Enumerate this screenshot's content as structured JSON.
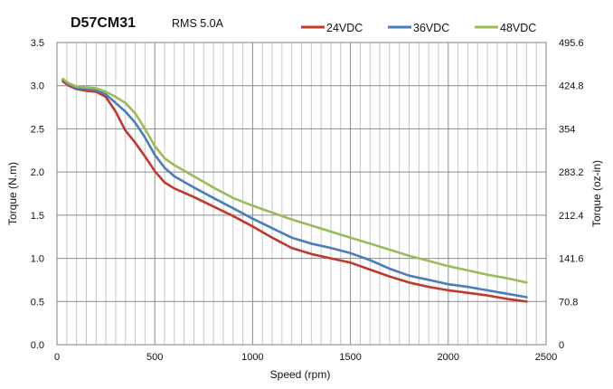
{
  "chart_data": {
    "type": "line",
    "title": "D57CM31",
    "subtitle": "RMS 5.0A",
    "xlabel": "Speed (rpm)",
    "ylabel": "Torque (N.m)",
    "y2label": "Torque (oz-in)",
    "xlim": [
      0,
      2500
    ],
    "ylim": [
      0,
      3.5
    ],
    "y2lim": [
      0,
      495.6
    ],
    "x_ticks": [
      "0",
      "500",
      "1000",
      "1500",
      "2000",
      "2500"
    ],
    "y_ticks": [
      "0.0",
      "0.5",
      "1.0",
      "1.5",
      "2.0",
      "2.5",
      "3.0",
      "3.5"
    ],
    "y2_ticks": [
      "0",
      "70.8",
      "141.6",
      "212.4",
      "283.2",
      "354",
      "424.8",
      "495.6"
    ],
    "x_grid_step": 50,
    "y_grid_step": 0.5,
    "grid": true,
    "legend_position": "top-right",
    "series": [
      {
        "name": "24VDC",
        "color": "#c0392b",
        "points": [
          [
            30,
            3.05
          ],
          [
            60,
            3.0
          ],
          [
            100,
            2.96
          ],
          [
            150,
            2.94
          ],
          [
            200,
            2.93
          ],
          [
            250,
            2.87
          ],
          [
            300,
            2.7
          ],
          [
            350,
            2.48
          ],
          [
            400,
            2.34
          ],
          [
            450,
            2.18
          ],
          [
            500,
            2.01
          ],
          [
            550,
            1.88
          ],
          [
            600,
            1.81
          ],
          [
            700,
            1.71
          ],
          [
            800,
            1.6
          ],
          [
            900,
            1.49
          ],
          [
            1000,
            1.37
          ],
          [
            1100,
            1.24
          ],
          [
            1200,
            1.12
          ],
          [
            1300,
            1.05
          ],
          [
            1400,
            1.0
          ],
          [
            1500,
            0.95
          ],
          [
            1600,
            0.87
          ],
          [
            1700,
            0.79
          ],
          [
            1800,
            0.72
          ],
          [
            1900,
            0.67
          ],
          [
            2000,
            0.63
          ],
          [
            2100,
            0.6
          ],
          [
            2200,
            0.57
          ],
          [
            2300,
            0.53
          ],
          [
            2400,
            0.5
          ]
        ]
      },
      {
        "name": "36VDC",
        "color": "#4a7ebb",
        "points": [
          [
            30,
            3.07
          ],
          [
            60,
            3.02
          ],
          [
            100,
            2.97
          ],
          [
            150,
            2.96
          ],
          [
            200,
            2.95
          ],
          [
            250,
            2.9
          ],
          [
            300,
            2.8
          ],
          [
            350,
            2.7
          ],
          [
            400,
            2.57
          ],
          [
            450,
            2.4
          ],
          [
            500,
            2.2
          ],
          [
            550,
            2.05
          ],
          [
            600,
            1.95
          ],
          [
            700,
            1.82
          ],
          [
            800,
            1.7
          ],
          [
            900,
            1.58
          ],
          [
            1000,
            1.46
          ],
          [
            1100,
            1.35
          ],
          [
            1200,
            1.24
          ],
          [
            1300,
            1.17
          ],
          [
            1400,
            1.12
          ],
          [
            1500,
            1.06
          ],
          [
            1600,
            0.98
          ],
          [
            1700,
            0.88
          ],
          [
            1800,
            0.8
          ],
          [
            1900,
            0.75
          ],
          [
            2000,
            0.7
          ],
          [
            2100,
            0.67
          ],
          [
            2200,
            0.63
          ],
          [
            2300,
            0.59
          ],
          [
            2400,
            0.55
          ]
        ]
      },
      {
        "name": "48VDC",
        "color": "#9bbb59",
        "points": [
          [
            30,
            3.08
          ],
          [
            60,
            3.03
          ],
          [
            100,
            2.99
          ],
          [
            150,
            2.98
          ],
          [
            200,
            2.97
          ],
          [
            250,
            2.93
          ],
          [
            300,
            2.87
          ],
          [
            350,
            2.8
          ],
          [
            400,
            2.68
          ],
          [
            450,
            2.5
          ],
          [
            500,
            2.3
          ],
          [
            550,
            2.16
          ],
          [
            600,
            2.08
          ],
          [
            700,
            1.95
          ],
          [
            800,
            1.82
          ],
          [
            900,
            1.7
          ],
          [
            1000,
            1.61
          ],
          [
            1100,
            1.53
          ],
          [
            1200,
            1.45
          ],
          [
            1300,
            1.38
          ],
          [
            1400,
            1.31
          ],
          [
            1500,
            1.24
          ],
          [
            1600,
            1.17
          ],
          [
            1700,
            1.1
          ],
          [
            1800,
            1.03
          ],
          [
            1900,
            0.97
          ],
          [
            2000,
            0.91
          ],
          [
            2100,
            0.86
          ],
          [
            2200,
            0.81
          ],
          [
            2300,
            0.77
          ],
          [
            2400,
            0.72
          ]
        ]
      }
    ]
  }
}
